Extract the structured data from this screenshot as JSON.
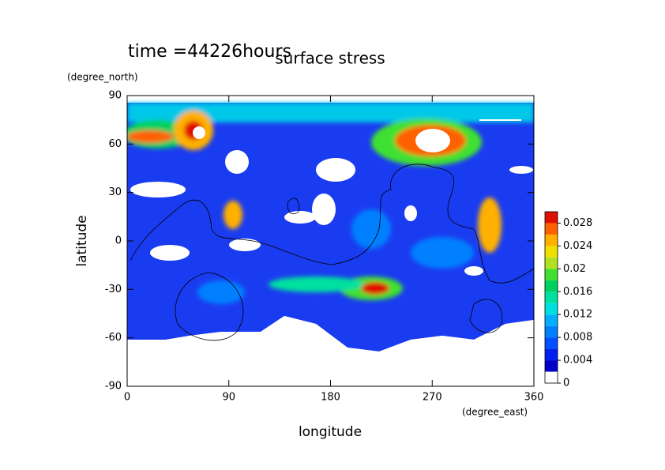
{
  "chart_data": {
    "type": "contour",
    "title": "surface stress",
    "annotation": "time =44226hours",
    "x_label": "longitude",
    "x_unit": "(degree_east)",
    "y_label": "latitude",
    "y_unit": "(degree_north)",
    "xlim": [
      0,
      360
    ],
    "xticks": [
      0,
      90,
      180,
      270,
      360
    ],
    "ylim": [
      -90,
      90
    ],
    "yticks": [
      -90,
      -60,
      -30,
      0,
      30,
      60,
      90
    ],
    "levels": [
      0,
      0.002,
      0.004,
      0.006,
      0.008,
      0.01,
      0.012,
      0.014,
      0.016,
      0.018,
      0.02,
      0.022,
      0.024,
      0.026,
      0.028,
      0.03
    ],
    "colors": [
      "#ffffff",
      "#0000c8",
      "#0020f0",
      "#0050ff",
      "#0080ff",
      "#00b0ff",
      "#00e0e0",
      "#00e0a0",
      "#00d060",
      "#40e030",
      "#b0e020",
      "#f0e000",
      "#ffb000",
      "#ff6000",
      "#e01000"
    ],
    "cticks": [
      0,
      0.004,
      0.008,
      0.012,
      0.016,
      0.02,
      0.024,
      0.028
    ]
  }
}
